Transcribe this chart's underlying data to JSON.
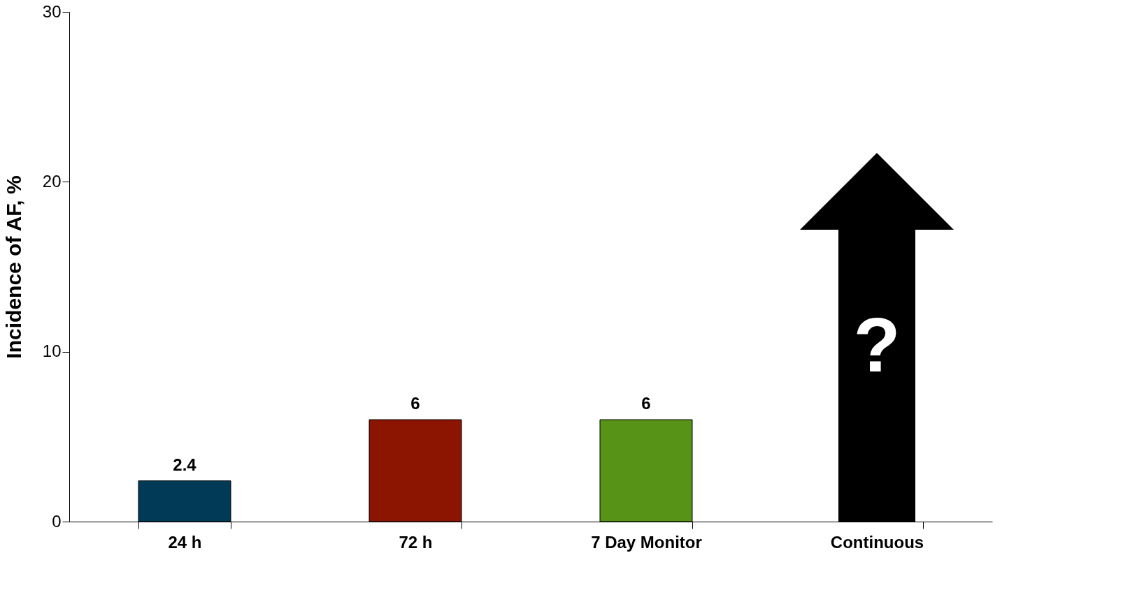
{
  "chart_data": {
    "type": "bar",
    "categories": [
      "24 h",
      "72 h",
      "7 Day Monitor",
      "Continuous"
    ],
    "values": [
      2.4,
      6,
      6,
      null
    ],
    "colors": [
      "#003a57",
      "#8b1500",
      "#579317",
      null
    ],
    "ylabel": "Incidence of AF, %",
    "ylim": [
      0,
      30
    ],
    "yticks": [
      0,
      10,
      20,
      30
    ],
    "data_labels": true,
    "grid": false,
    "legend": false,
    "annotations": [
      "?"
    ]
  }
}
